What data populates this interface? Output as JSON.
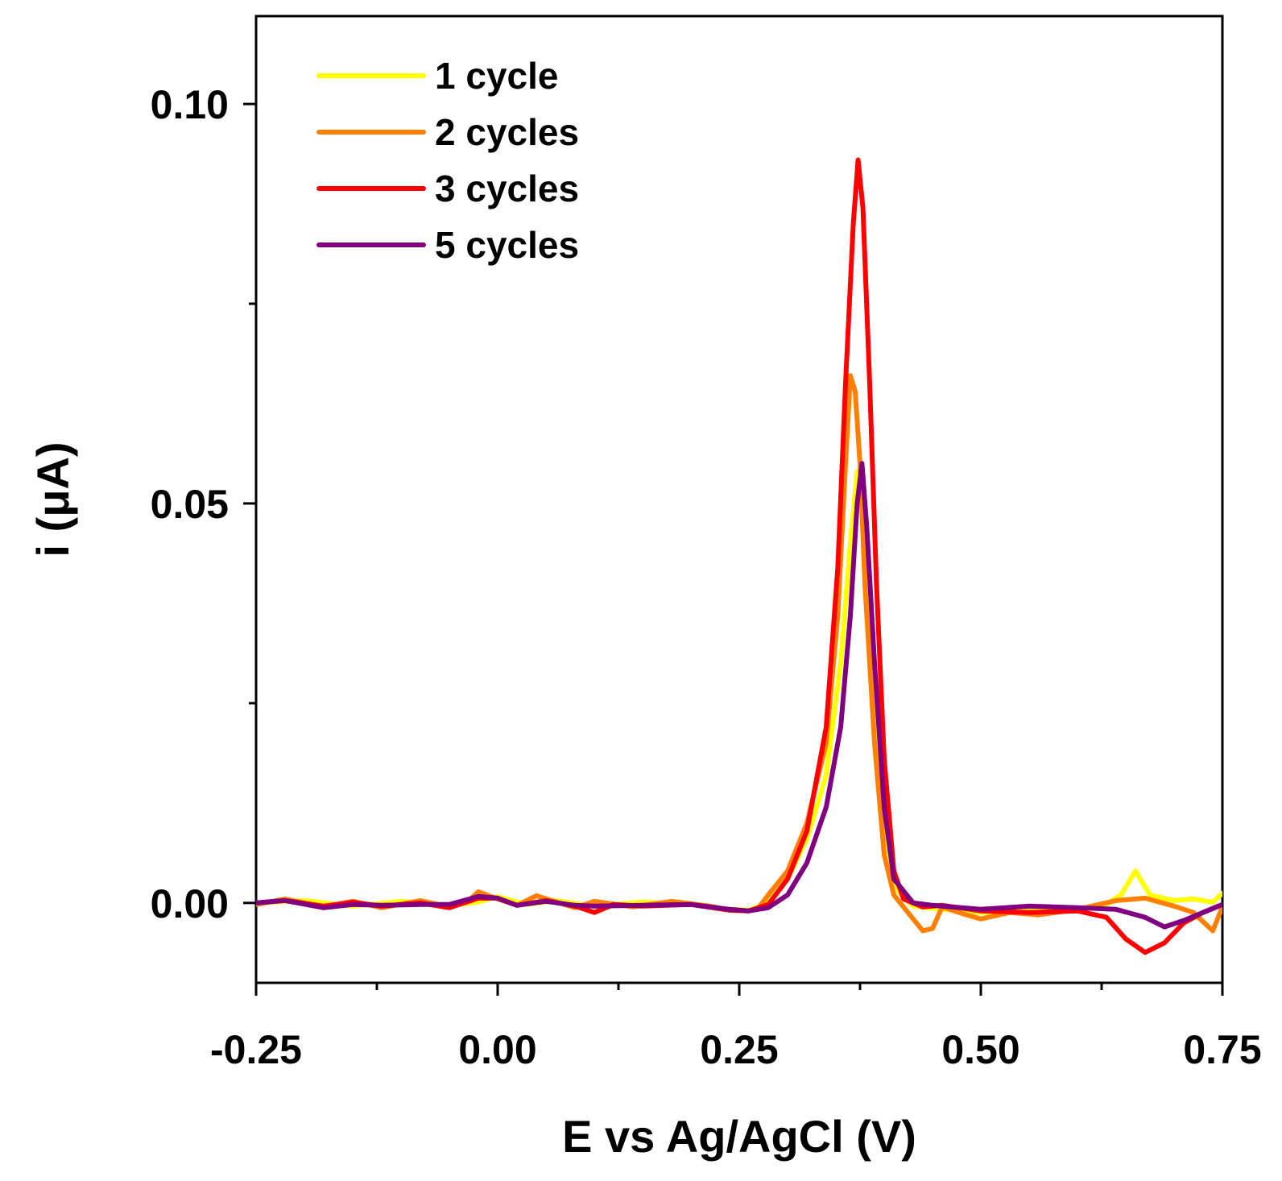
{
  "chart_data": {
    "type": "line",
    "title": "",
    "xlabel": "E vs Ag/AgCl (V)",
    "ylabel": "i (μA)",
    "xlim": [
      -0.25,
      0.75
    ],
    "ylim": [
      -0.01,
      0.111
    ],
    "x_major_ticks": [
      -0.25,
      0.0,
      0.25,
      0.5,
      0.75
    ],
    "x_tick_labels": [
      "-0.25",
      "0.00",
      "0.25",
      "0.50",
      "0.75"
    ],
    "x_minor_ticks": [
      -0.125,
      0.125,
      0.375,
      0.625
    ],
    "y_major_ticks": [
      0.0,
      0.05,
      0.1
    ],
    "y_tick_labels": [
      "0.00",
      "0.05",
      "0.10"
    ],
    "y_minor_ticks": [
      0.025,
      0.075
    ],
    "grid": false,
    "legend_position": "top-left",
    "series": [
      {
        "name": "1 cycle",
        "color": "#FFFF00",
        "points": [
          [
            -0.25,
            0.0
          ],
          [
            -0.2,
            0.0003
          ],
          [
            -0.15,
            -0.0004
          ],
          [
            -0.1,
            0.0002
          ],
          [
            -0.05,
            -0.0003
          ],
          [
            -0.02,
            0.0001
          ],
          [
            0.0,
            0.0008
          ],
          [
            0.03,
            -0.0002
          ],
          [
            0.06,
            0.0003
          ],
          [
            0.1,
            -0.0004
          ],
          [
            0.15,
            0.0001
          ],
          [
            0.2,
            -0.0002
          ],
          [
            0.24,
            -0.0008
          ],
          [
            0.26,
            -0.0009
          ],
          [
            0.28,
            0.0
          ],
          [
            0.3,
            0.003
          ],
          [
            0.32,
            0.008
          ],
          [
            0.34,
            0.016
          ],
          [
            0.355,
            0.03
          ],
          [
            0.365,
            0.045
          ],
          [
            0.372,
            0.054
          ],
          [
            0.38,
            0.047
          ],
          [
            0.39,
            0.03
          ],
          [
            0.4,
            0.01
          ],
          [
            0.41,
            0.002
          ],
          [
            0.43,
            -0.0004
          ],
          [
            0.46,
            -0.0008
          ],
          [
            0.5,
            -0.0012
          ],
          [
            0.55,
            -0.001
          ],
          [
            0.6,
            -0.0008
          ],
          [
            0.63,
            -0.0002
          ],
          [
            0.645,
            0.001
          ],
          [
            0.66,
            0.004
          ],
          [
            0.675,
            0.001
          ],
          [
            0.7,
            0.0003
          ],
          [
            0.72,
            0.0005
          ],
          [
            0.74,
            0.0001
          ],
          [
            0.75,
            0.0012
          ]
        ]
      },
      {
        "name": "2 cycles",
        "color": "#FF8000",
        "points": [
          [
            -0.25,
            -0.0002
          ],
          [
            -0.22,
            0.0005
          ],
          [
            -0.18,
            -0.0005
          ],
          [
            -0.15,
            0.0002
          ],
          [
            -0.12,
            -0.0006
          ],
          [
            -0.08,
            0.0003
          ],
          [
            -0.05,
            -0.0005
          ],
          [
            -0.03,
            0.0003
          ],
          [
            -0.02,
            0.0014
          ],
          [
            0.0,
            0.0005
          ],
          [
            0.02,
            -0.0003
          ],
          [
            0.04,
            0.0009
          ],
          [
            0.08,
            -0.0006
          ],
          [
            0.1,
            0.0002
          ],
          [
            0.14,
            -0.0005
          ],
          [
            0.18,
            0.0002
          ],
          [
            0.22,
            -0.0004
          ],
          [
            0.24,
            -0.0009
          ],
          [
            0.26,
            -0.001
          ],
          [
            0.27,
            -0.0006
          ],
          [
            0.28,
            0.001
          ],
          [
            0.3,
            0.004
          ],
          [
            0.32,
            0.01
          ],
          [
            0.34,
            0.02
          ],
          [
            0.352,
            0.036
          ],
          [
            0.36,
            0.055
          ],
          [
            0.365,
            0.066
          ],
          [
            0.37,
            0.064
          ],
          [
            0.375,
            0.055
          ],
          [
            0.38,
            0.04
          ],
          [
            0.39,
            0.02
          ],
          [
            0.4,
            0.006
          ],
          [
            0.41,
            0.001
          ],
          [
            0.43,
            -0.002
          ],
          [
            0.44,
            -0.0035
          ],
          [
            0.45,
            -0.0032
          ],
          [
            0.46,
            -0.0005
          ],
          [
            0.48,
            -0.0013
          ],
          [
            0.5,
            -0.002
          ],
          [
            0.53,
            -0.0012
          ],
          [
            0.56,
            -0.0015
          ],
          [
            0.6,
            -0.0008
          ],
          [
            0.64,
            0.0003
          ],
          [
            0.67,
            0.0006
          ],
          [
            0.7,
            -0.0004
          ],
          [
            0.72,
            -0.0012
          ],
          [
            0.74,
            -0.0035
          ],
          [
            0.75,
            -0.0005
          ]
        ]
      },
      {
        "name": "3 cycles",
        "color": "#FF0000",
        "points": [
          [
            -0.25,
            0.0
          ],
          [
            -0.22,
            0.0003
          ],
          [
            -0.18,
            -0.0004
          ],
          [
            -0.15,
            0.0001
          ],
          [
            -0.12,
            -0.0004
          ],
          [
            -0.08,
            0.0
          ],
          [
            -0.05,
            -0.0006
          ],
          [
            -0.02,
            0.0006
          ],
          [
            0.0,
            0.0006
          ],
          [
            0.02,
            -0.0003
          ],
          [
            0.05,
            0.0003
          ],
          [
            0.08,
            -0.0004
          ],
          [
            0.1,
            -0.0012
          ],
          [
            0.12,
            -0.0002
          ],
          [
            0.15,
            -0.0004
          ],
          [
            0.2,
            -0.0002
          ],
          [
            0.24,
            -0.0009
          ],
          [
            0.26,
            -0.001
          ],
          [
            0.28,
            -0.0002
          ],
          [
            0.3,
            0.003
          ],
          [
            0.32,
            0.009
          ],
          [
            0.34,
            0.022
          ],
          [
            0.352,
            0.042
          ],
          [
            0.36,
            0.065
          ],
          [
            0.368,
            0.085
          ],
          [
            0.373,
            0.093
          ],
          [
            0.378,
            0.087
          ],
          [
            0.385,
            0.065
          ],
          [
            0.392,
            0.04
          ],
          [
            0.4,
            0.018
          ],
          [
            0.41,
            0.004
          ],
          [
            0.42,
            0.0005
          ],
          [
            0.44,
            -0.0005
          ],
          [
            0.46,
            -0.0003
          ],
          [
            0.5,
            -0.001
          ],
          [
            0.55,
            -0.0012
          ],
          [
            0.6,
            -0.001
          ],
          [
            0.63,
            -0.0018
          ],
          [
            0.65,
            -0.0045
          ],
          [
            0.67,
            -0.0062
          ],
          [
            0.69,
            -0.005
          ],
          [
            0.71,
            -0.0025
          ],
          [
            0.73,
            -0.0012
          ],
          [
            0.75,
            -0.0002
          ]
        ]
      },
      {
        "name": "5 cycles",
        "color": "#800080",
        "points": [
          [
            -0.25,
            0.0
          ],
          [
            -0.22,
            0.0003
          ],
          [
            -0.18,
            -0.0006
          ],
          [
            -0.15,
            -0.0002
          ],
          [
            -0.12,
            -0.0003
          ],
          [
            -0.08,
            -0.0002
          ],
          [
            -0.05,
            -0.0002
          ],
          [
            -0.02,
            0.0008
          ],
          [
            0.0,
            0.0006
          ],
          [
            0.02,
            -0.0003
          ],
          [
            0.05,
            0.0002
          ],
          [
            0.08,
            -0.0003
          ],
          [
            0.1,
            -0.0004
          ],
          [
            0.15,
            -0.0003
          ],
          [
            0.2,
            -0.0002
          ],
          [
            0.24,
            -0.0008
          ],
          [
            0.26,
            -0.001
          ],
          [
            0.28,
            -0.0006
          ],
          [
            0.3,
            0.001
          ],
          [
            0.32,
            0.005
          ],
          [
            0.34,
            0.012
          ],
          [
            0.355,
            0.022
          ],
          [
            0.365,
            0.036
          ],
          [
            0.372,
            0.05
          ],
          [
            0.377,
            0.055
          ],
          [
            0.382,
            0.047
          ],
          [
            0.39,
            0.03
          ],
          [
            0.4,
            0.012
          ],
          [
            0.41,
            0.003
          ],
          [
            0.43,
            0.0
          ],
          [
            0.45,
            -0.0003
          ],
          [
            0.5,
            -0.0008
          ],
          [
            0.55,
            -0.0004
          ],
          [
            0.6,
            -0.0006
          ],
          [
            0.64,
            -0.0008
          ],
          [
            0.67,
            -0.0018
          ],
          [
            0.69,
            -0.003
          ],
          [
            0.71,
            -0.0022
          ],
          [
            0.73,
            -0.0012
          ],
          [
            0.75,
            -0.0002
          ]
        ]
      }
    ]
  }
}
